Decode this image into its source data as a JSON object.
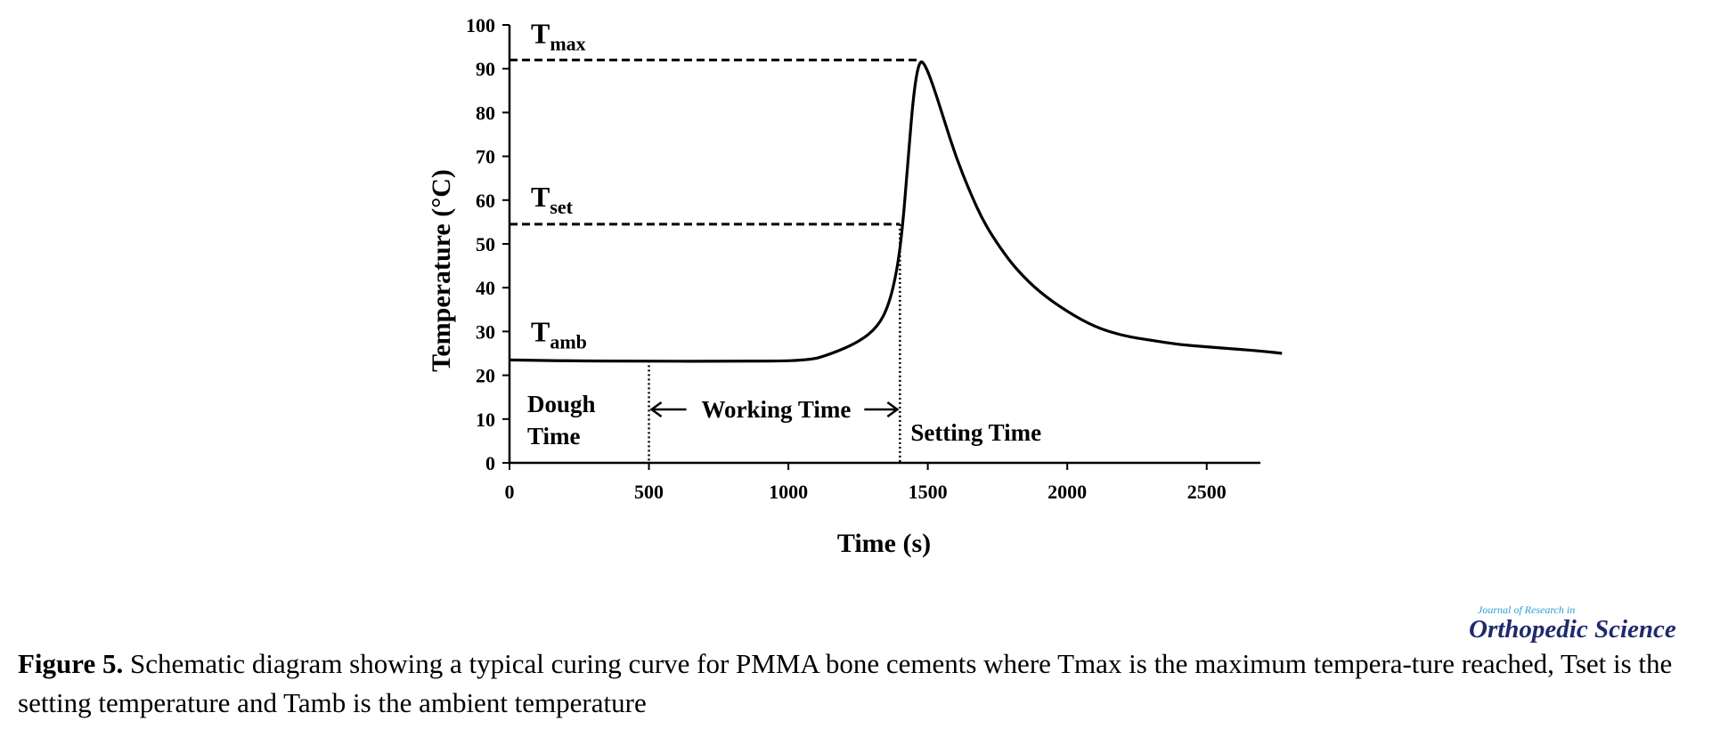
{
  "chart_data": {
    "type": "line",
    "xlabel": "Time (s)",
    "ylabel": "Temperature (°C)",
    "xlim": [
      0,
      2750
    ],
    "ylim": [
      0,
      100
    ],
    "x_ticks": [
      0,
      500,
      1000,
      1500,
      2000,
      2500
    ],
    "y_ticks": [
      0,
      10,
      20,
      30,
      40,
      50,
      60,
      70,
      80,
      90,
      100
    ],
    "grid": false,
    "series": [
      {
        "points": [
          [
            0,
            23.5
          ],
          [
            200,
            23.3
          ],
          [
            500,
            23.2
          ],
          [
            800,
            23.2
          ],
          [
            1070,
            23.3
          ],
          [
            1150,
            24.8
          ],
          [
            1250,
            27.5
          ],
          [
            1320,
            31
          ],
          [
            1360,
            36
          ],
          [
            1390,
            44
          ],
          [
            1410,
            54
          ],
          [
            1430,
            70
          ],
          [
            1450,
            85
          ],
          [
            1470,
            92
          ],
          [
            1490,
            91
          ],
          [
            1520,
            86
          ],
          [
            1560,
            78
          ],
          [
            1600,
            70
          ],
          [
            1650,
            62
          ],
          [
            1700,
            55
          ],
          [
            1760,
            49
          ],
          [
            1820,
            44
          ],
          [
            1900,
            39
          ],
          [
            2000,
            34.5
          ],
          [
            2100,
            31
          ],
          [
            2200,
            29
          ],
          [
            2300,
            28
          ],
          [
            2400,
            27
          ],
          [
            2500,
            26.5
          ],
          [
            2600,
            26
          ],
          [
            2700,
            25.5
          ],
          [
            2770,
            25
          ]
        ]
      }
    ],
    "reference_lines": [
      {
        "label_main": "T",
        "label_sub": "max",
        "y": 92,
        "x_end": 1470
      },
      {
        "label_main": "T",
        "label_sub": "set",
        "y": 54.5,
        "x_end": 1400
      },
      {
        "label_main": "T",
        "label_sub": "amb",
        "y": 23.3,
        "x_end": 500
      }
    ],
    "time_markers": [
      500,
      1400
    ],
    "regions": [
      {
        "label_line1": "Dough",
        "label_line2": "Time"
      },
      {
        "label": "Working Time"
      },
      {
        "label": "Setting Time"
      }
    ]
  },
  "journal": {
    "small": "Journal of Research in",
    "big": "Orthopedic Science"
  },
  "caption": {
    "label": "Figure 5.",
    "text": " Schematic diagram showing a typical curing curve for PMMA bone cements where Tmax is the maximum tempera-ture reached, Tset is the setting temperature and Tamb is the ambient temperature"
  }
}
